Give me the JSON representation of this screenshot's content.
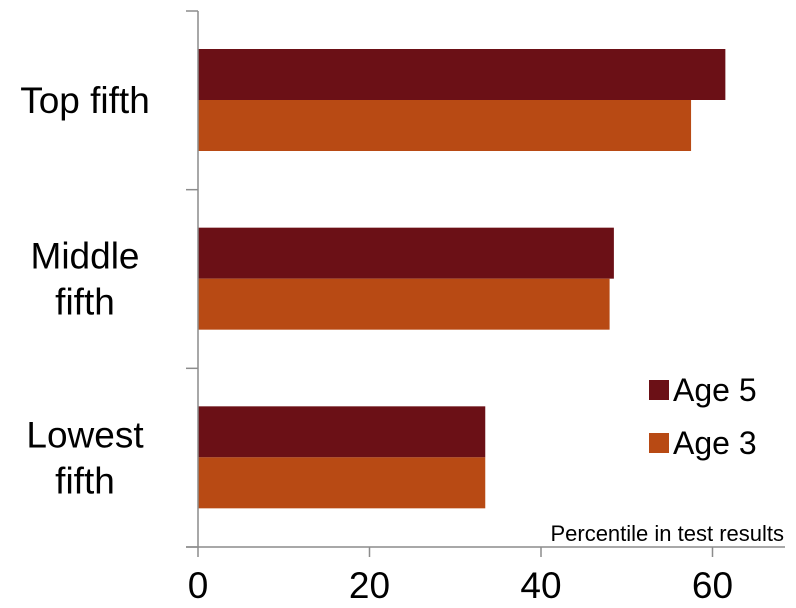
{
  "chart_data": {
    "type": "bar",
    "orientation": "horizontal",
    "categories": [
      "Top fifth",
      "Middle fifth",
      "Lowest fifth"
    ],
    "category_lines": [
      [
        "Top fifth"
      ],
      [
        "Middle",
        "fifth"
      ],
      [
        "Lowest",
        "fifth"
      ]
    ],
    "series": [
      {
        "name": "Age 5",
        "color": "#6b1016",
        "values": [
          61.5,
          48.5,
          33.5
        ]
      },
      {
        "name": "Age 3",
        "color": "#b84a14",
        "values": [
          57.5,
          48.0,
          33.5
        ]
      }
    ],
    "xlabel": "Percentile in test results",
    "xlim": [
      0,
      70
    ],
    "xticks": [
      0,
      20,
      40,
      60
    ],
    "grid": false,
    "legend_position": "bottom-right"
  }
}
